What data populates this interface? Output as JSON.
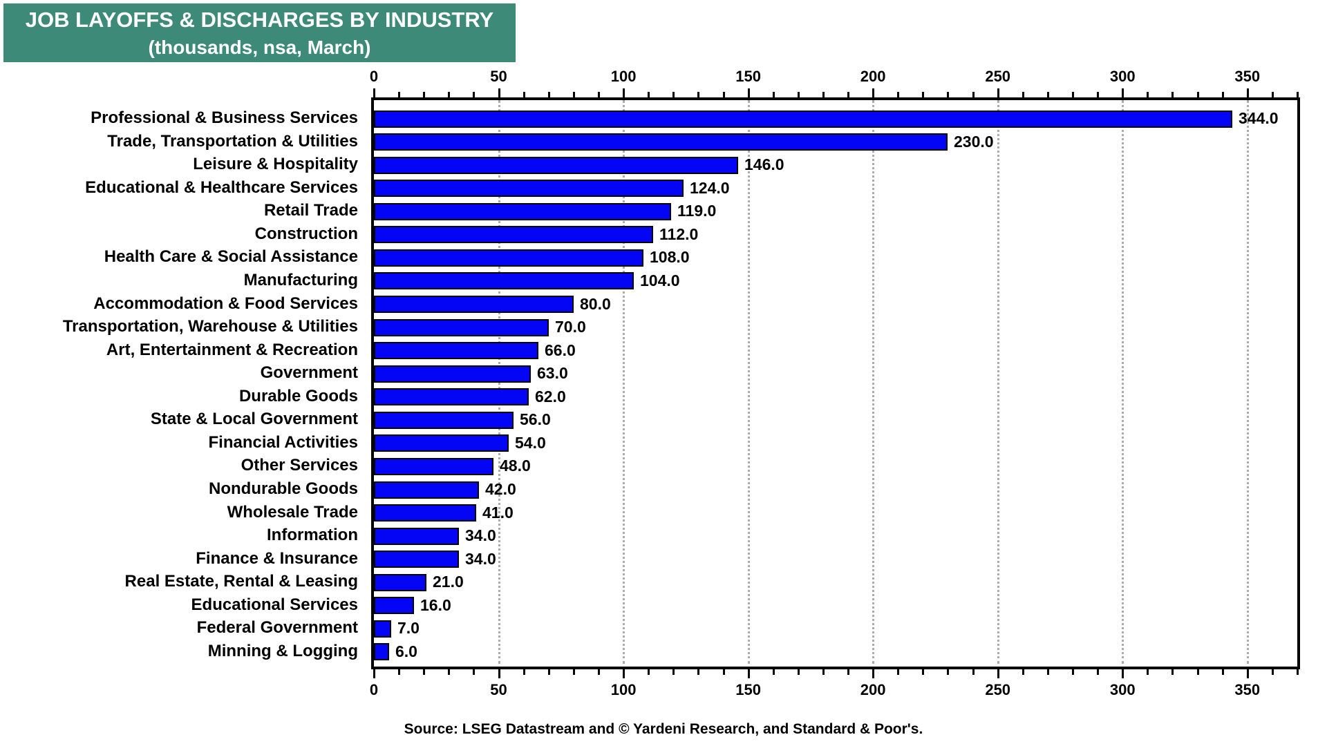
{
  "chart_data": {
    "type": "bar",
    "orientation": "horizontal",
    "title": "JOB LAYOFFS & DISCHARGES BY INDUSTRY",
    "subtitle": "(thousands, nsa, March)",
    "xlabel": "",
    "ylabel": "",
    "xlim": [
      0,
      370
    ],
    "x_major_tick": 50,
    "x_minor_tick": 10,
    "x_tick_labels": [
      "0",
      "50",
      "100",
      "150",
      "200",
      "250",
      "300",
      "350"
    ],
    "grid": "vertical dotted gridlines at major ticks, axis ticks on top and bottom",
    "legend": "none",
    "categories": [
      "Professional & Business Services",
      "Trade, Transportation & Utilities",
      "Leisure & Hospitality",
      "Educational & Healthcare Services",
      "Retail Trade",
      "Construction",
      "Health Care & Social Assistance",
      "Manufacturing",
      "Accommodation  & Food Services",
      "Transportation, Warehouse & Utilities",
      "Art, Entertainment & Recreation",
      "Government",
      "Durable Goods",
      "State & Local Government",
      "Financial Activities",
      "Other Services",
      "Nondurable Goods",
      "Wholesale Trade",
      "Information",
      "Finance & Insurance",
      "Real Estate, Rental & Leasing",
      "Educational Services",
      "Federal Government",
      "Minning & Logging"
    ],
    "values": [
      344,
      230,
      146,
      124,
      119,
      112,
      108,
      104,
      80,
      70,
      66,
      63,
      62,
      56,
      54,
      48,
      42,
      41,
      34,
      34,
      21,
      16,
      7,
      6
    ],
    "value_labels": [
      "344.0",
      "230.0",
      "146.0",
      "124.0",
      "119.0",
      "112.0",
      "108.0",
      "104.0",
      "80.0",
      "70.0",
      "66.0",
      "63.0",
      "62.0",
      "56.0",
      "54.0",
      "48.0",
      "42.0",
      "41.0",
      "34.0",
      "34.0",
      "21.0",
      "16.0",
      "7.0",
      "6.0"
    ]
  },
  "source": {
    "text": "Source: LSEG Datastream and © Yardeni Research, and Standard & Poor's."
  },
  "colors": {
    "header_bg": "#3E8A78",
    "header_text": "#FFFFFF",
    "bar_fill": "#0505F5",
    "bar_border": "#000000",
    "gridline": "#ABABAB",
    "frame": "#000000",
    "text": "#000000"
  }
}
